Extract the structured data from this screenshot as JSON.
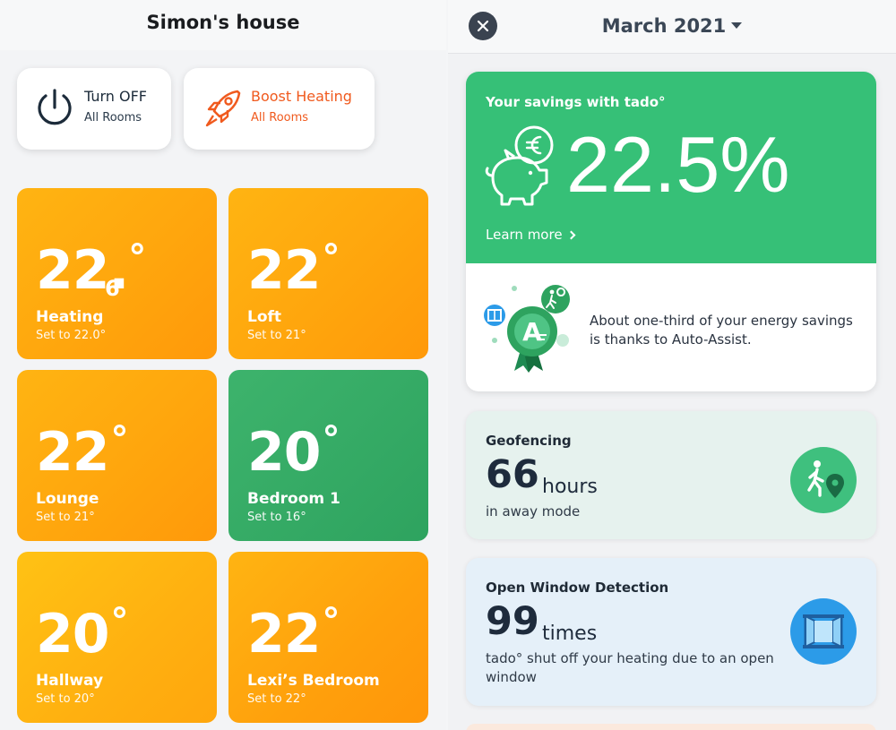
{
  "left": {
    "house_title": "Simon's house",
    "actions": {
      "turn_off": {
        "title": "Turn OFF",
        "subtitle": "All Rooms"
      },
      "boost": {
        "title": "Boost Heating",
        "subtitle": "All Rooms"
      }
    },
    "rooms": [
      {
        "temp": "22.",
        "decimal": "6",
        "name": "Heating",
        "setpoint": "Set to 22.0°",
        "state": "heating"
      },
      {
        "temp": "22",
        "name": "Loft",
        "setpoint": "Set to 21°",
        "state": "heating"
      },
      {
        "temp": "22",
        "name": "Lounge",
        "setpoint": "Set to 21°",
        "state": "heating"
      },
      {
        "temp": "20",
        "name": "Bedroom 1",
        "setpoint": "Set to 16°",
        "state": "comfort"
      },
      {
        "temp": "20",
        "name": "Hallway",
        "setpoint": "Set to 20°",
        "state": "heating"
      },
      {
        "temp": "22",
        "name": "Lexi’s Bedroom",
        "setpoint": "Set to 22°",
        "state": "heating"
      }
    ],
    "degree_symbol": "°"
  },
  "right": {
    "month": "March 2021",
    "savings": {
      "title": "Your savings with tado°",
      "percent": "22.5%",
      "learn_more": "Learn more",
      "auto_assist_text": "About one-third of your energy savings is thanks to Auto-Assist."
    },
    "geofencing": {
      "title": "Geofencing",
      "value": "66",
      "unit": "hours",
      "description": "in away mode"
    },
    "open_window": {
      "title": "Open Window Detection",
      "value": "99",
      "unit": "times",
      "description": "tado° shut off your heating due to an open window"
    }
  },
  "colors": {
    "heating_orange": "#ffa60d",
    "comfort_green": "#2ea35f",
    "savings_green": "#36c077",
    "boost_orange": "#f05a1e",
    "window_blue": "#2c9be8"
  },
  "icons": {
    "power": "power-icon",
    "boost": "rocket-icon",
    "close": "close-icon",
    "piggy": "piggy-bank-euro-icon",
    "award": "auto-assist-award-icon",
    "geofence": "walking-person-location-icon",
    "window": "open-window-icon"
  }
}
